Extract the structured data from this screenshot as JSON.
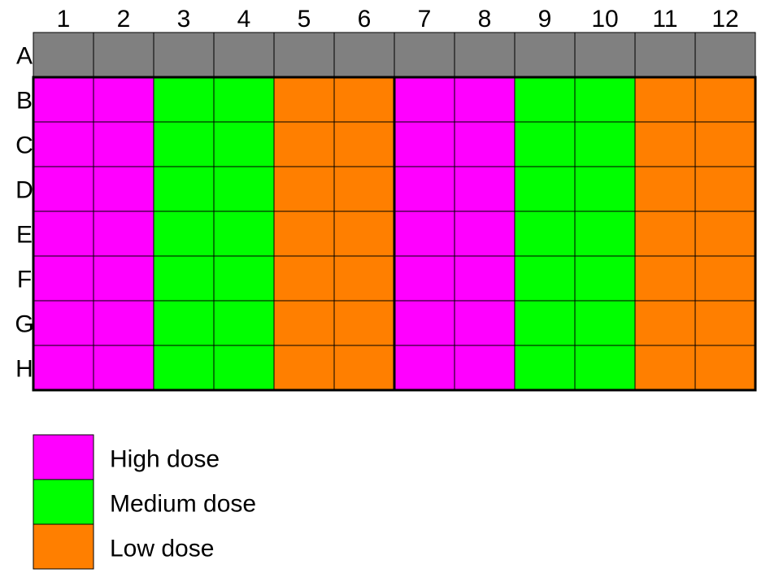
{
  "plate": {
    "columns": [
      "1",
      "2",
      "3",
      "4",
      "5",
      "6",
      "7",
      "8",
      "9",
      "10",
      "11",
      "12"
    ],
    "rows": [
      "A",
      "B",
      "C",
      "D",
      "E",
      "F",
      "G",
      "H"
    ],
    "row_conditions": {
      "A": [
        "empty",
        "empty",
        "empty",
        "empty",
        "empty",
        "empty",
        "empty",
        "empty",
        "empty",
        "empty",
        "empty",
        "empty"
      ],
      "B": [
        "high",
        "high",
        "medium",
        "medium",
        "low",
        "low",
        "high",
        "high",
        "medium",
        "medium",
        "low",
        "low"
      ],
      "C": [
        "high",
        "high",
        "medium",
        "medium",
        "low",
        "low",
        "high",
        "high",
        "medium",
        "medium",
        "low",
        "low"
      ],
      "D": [
        "high",
        "high",
        "medium",
        "medium",
        "low",
        "low",
        "high",
        "high",
        "medium",
        "medium",
        "low",
        "low"
      ],
      "E": [
        "high",
        "high",
        "medium",
        "medium",
        "low",
        "low",
        "high",
        "high",
        "medium",
        "medium",
        "low",
        "low"
      ],
      "F": [
        "high",
        "high",
        "medium",
        "medium",
        "low",
        "low",
        "high",
        "high",
        "medium",
        "medium",
        "low",
        "low"
      ],
      "G": [
        "high",
        "high",
        "medium",
        "medium",
        "low",
        "low",
        "high",
        "high",
        "medium",
        "medium",
        "low",
        "low"
      ],
      "H": [
        "high",
        "high",
        "medium",
        "medium",
        "low",
        "low",
        "high",
        "high",
        "medium",
        "medium",
        "low",
        "low"
      ]
    },
    "colors": {
      "empty": "#808080",
      "high": "#ff00ff",
      "medium": "#00ff00",
      "low": "#ff7f00"
    }
  },
  "legend": {
    "items": [
      {
        "key": "high",
        "label": "High dose",
        "color": "#ff00ff"
      },
      {
        "key": "medium",
        "label": "Medium dose",
        "color": "#00ff00"
      },
      {
        "key": "low",
        "label": "Low dose",
        "color": "#ff7f00"
      }
    ]
  }
}
